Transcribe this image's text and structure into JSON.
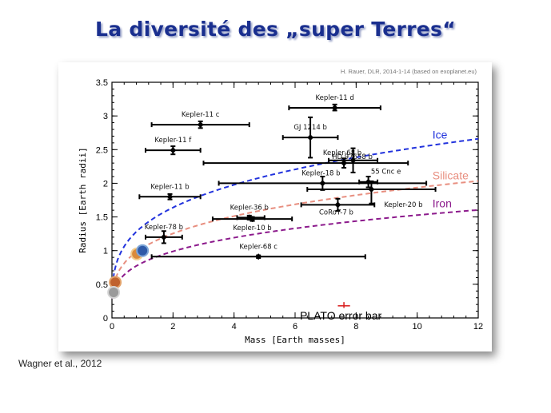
{
  "slide": {
    "title": "La diversité des „super Terres“",
    "citation": "Wagner et al., 2012"
  },
  "chart_data": {
    "type": "scatter",
    "credit": "H. Rauer, DLR, 2014-1-14 (based on exoplanet.eu)",
    "xlabel": "Mass [Earth masses]",
    "ylabel": "Radius [Earth radii]",
    "xlim": [
      0,
      12
    ],
    "ylim": [
      0,
      3.5
    ],
    "xticks": [
      "0",
      "2",
      "4",
      "6",
      "8",
      "10",
      "12"
    ],
    "yticks": [
      "0",
      "0.5",
      "1",
      "1.5",
      "2",
      "2.5",
      "3",
      "3.5"
    ],
    "grid": false,
    "points": [
      {
        "label": "Kepler-11 d",
        "x": 7.3,
        "y": 3.12,
        "xerr": [
          1.5,
          1.5
        ],
        "yerr": [
          0.04,
          0.05
        ]
      },
      {
        "label": "Kepler-11 c",
        "x": 2.9,
        "y": 2.87,
        "xerr": [
          1.6,
          1.6
        ],
        "yerr": [
          0.05,
          0.05
        ]
      },
      {
        "label": "GJ 1214 b",
        "x": 6.5,
        "y": 2.68,
        "xerr": [
          0.9,
          0.9
        ],
        "yerr": [
          0.3,
          0.3
        ]
      },
      {
        "label": "Kepler-11 f",
        "x": 2.0,
        "y": 2.49,
        "xerr": [
          0.9,
          0.9
        ],
        "yerr": [
          0.06,
          0.06
        ]
      },
      {
        "label": "Kepler-68 b",
        "x": 7.6,
        "y": 2.3,
        "xerr": [
          4.6,
          2.1
        ],
        "yerr": [
          0.07,
          0.07
        ]
      },
      {
        "label": "HD 97658 b",
        "x": 7.9,
        "y": 2.34,
        "xerr": [
          0.8,
          0.8
        ],
        "yerr": [
          0.18,
          0.18
        ]
      },
      {
        "label": "55 Cnc e",
        "x": 8.4,
        "y": 2.02,
        "xerr": [
          0.3,
          0.3
        ],
        "yerr": [
          0.08,
          0.08
        ]
      },
      {
        "label": "Kepler-18 b",
        "x": 6.9,
        "y": 2.0,
        "xerr": [
          3.4,
          3.4
        ],
        "yerr": [
          0.1,
          0.1
        ]
      },
      {
        "label": "Kepler-20 b",
        "x": 8.5,
        "y": 1.91,
        "xerr": [
          2.1,
          2.1
        ],
        "yerr": [
          0.21,
          0.12
        ]
      },
      {
        "label": "Kepler-11 b",
        "x": 1.9,
        "y": 1.8,
        "xerr": [
          1.0,
          1.0
        ],
        "yerr": [
          0.04,
          0.04
        ]
      },
      {
        "label": "CoRoT-7 b",
        "x": 7.4,
        "y": 1.68,
        "xerr": [
          1.2,
          1.2
        ],
        "yerr": [
          0.09,
          0.09
        ]
      },
      {
        "label": "Kepler-36 b",
        "x": 4.5,
        "y": 1.49,
        "xerr": [
          0.4,
          0.5
        ],
        "yerr": [
          0.03,
          0.03
        ]
      },
      {
        "label": "Kepler-10 b",
        "x": 4.6,
        "y": 1.47,
        "xerr": [
          1.3,
          1.3
        ],
        "yerr": [
          0.03,
          0.03
        ]
      },
      {
        "label": "Kepler-78 b",
        "x": 1.7,
        "y": 1.2,
        "xerr": [
          0.6,
          0.6
        ],
        "yerr": [
          0.09,
          0.09
        ]
      },
      {
        "label": "Kepler-68 c",
        "x": 4.8,
        "y": 0.91,
        "xerr": [
          3.5,
          3.5
        ],
        "yerr": [
          0.02,
          0.02
        ]
      }
    ],
    "curves": [
      {
        "name": "Ice",
        "color": "#2233dd",
        "a": 1.36,
        "b": 0.27
      },
      {
        "name": "Silicate",
        "color": "#e88f80",
        "a": 1.04,
        "b": 0.27
      },
      {
        "name": "Iron",
        "color": "#8c1a8c",
        "a": 0.82,
        "b": 0.27
      }
    ],
    "solar_system": [
      {
        "x": 0.107,
        "y": 0.53,
        "color": "#c0622e",
        "ring": "#e3a36b"
      },
      {
        "x": 0.055,
        "y": 0.38,
        "color": "#9a9a9a",
        "ring": "#d5d5d5"
      },
      {
        "x": 0.815,
        "y": 0.95,
        "color": "#d98a3a",
        "ring": "#f2cc8c"
      },
      {
        "x": 1.0,
        "y": 1.0,
        "color": "#2f5aa8",
        "ring": "#7ea6d8"
      }
    ],
    "plato_error_bar": {
      "label": "PLATO error bar",
      "x": 7.6,
      "y": 0.18,
      "xerr": 0.2,
      "yerr": 0.02
    }
  }
}
